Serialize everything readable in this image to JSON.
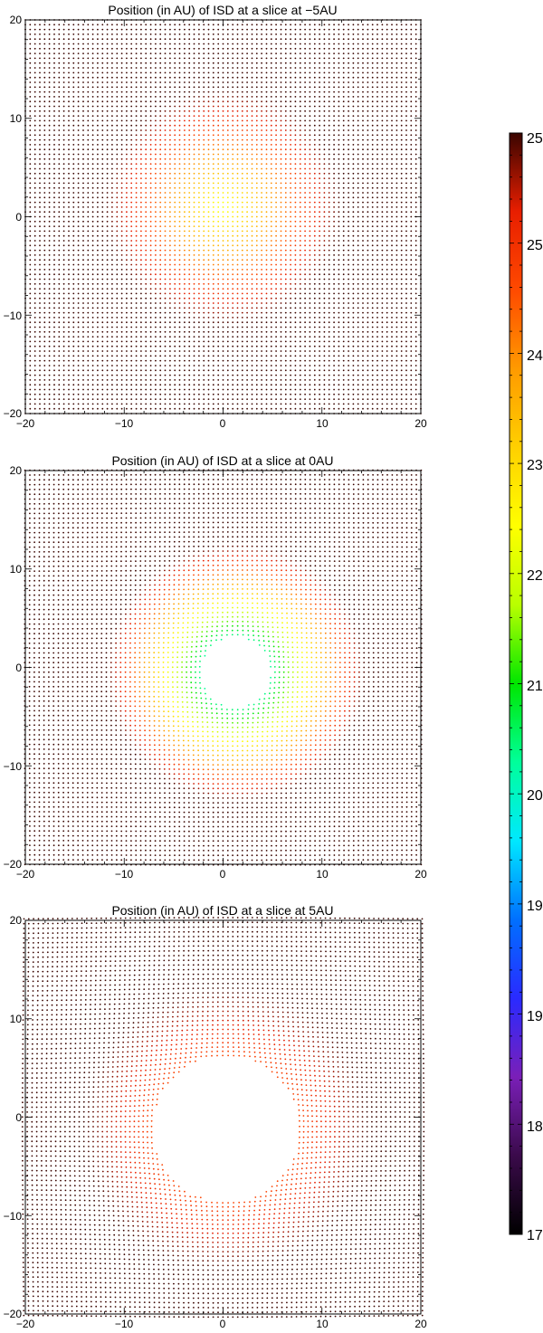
{
  "colors": {
    "outer_dots": "#c8371e",
    "frame": "#000000",
    "background": "#ffffff"
  },
  "chart_data": [
    {
      "type": "scatter",
      "title": "Position (in AU) of ISD at a slice at −5AU",
      "xlabel": "",
      "ylabel": "",
      "xlim": [
        -20,
        20
      ],
      "ylim": [
        -20,
        20
      ],
      "xticks": [
        "−20",
        "−10",
        "0",
        "10",
        "20"
      ],
      "yticks": [
        "20",
        "10",
        "0",
        "−10",
        "−20"
      ],
      "grid": false,
      "color_by": "value",
      "hole": null,
      "field": {
        "center": [
          0,
          1
        ],
        "min_value": 22.0,
        "edge_value": 25.0,
        "radius_scale": 12
      }
    },
    {
      "type": "scatter",
      "title": "Position (in AU) of ISD at a slice at 0AU",
      "xlabel": "",
      "ylabel": "",
      "xlim": [
        -20,
        20
      ],
      "ylim": [
        -20,
        20
      ],
      "xticks": [
        "−20",
        "−10",
        "0",
        "10",
        "20"
      ],
      "yticks": [
        "20",
        "10",
        "0",
        "−10",
        "−20"
      ],
      "grid": false,
      "color_by": "value",
      "hole": {
        "center": [
          1.3,
          -0.5
        ],
        "radius": 3.1
      },
      "field": {
        "center": [
          1.3,
          -0.5
        ],
        "min_value": 19.0,
        "edge_value": 25.0,
        "radius_scale": 13
      }
    },
    {
      "type": "scatter",
      "title": "Position (in AU) of ISD at a slice at 5AU",
      "xlabel": "",
      "ylabel": "",
      "xlim": [
        -20,
        20
      ],
      "ylim": [
        -20,
        20
      ],
      "xticks": [
        "−20",
        "−10",
        "0",
        "10",
        "20"
      ],
      "yticks": [
        "20",
        "10",
        "0",
        "−10",
        "−20"
      ],
      "grid": false,
      "color_by": "value",
      "hole": {
        "center": [
          0.3,
          -1.2
        ],
        "radius": 6.5
      },
      "field": {
        "center": [
          0.3,
          -1.2
        ],
        "min_value": 23.0,
        "edge_value": 25.0,
        "radius_scale": 14
      }
    }
  ],
  "colorbar": {
    "min": 17,
    "max": 25,
    "tick_labels": [
      "25",
      "25",
      "24",
      "23",
      "22",
      "21",
      "20",
      "19",
      "19",
      "18",
      "17"
    ],
    "stops": [
      "#000000",
      "#3a0a4a",
      "#7a1fb8",
      "#2a2aff",
      "#0070ff",
      "#00e8ff",
      "#00ff9a",
      "#00e600",
      "#b8ff00",
      "#ffff00",
      "#ffd000",
      "#ff9a00",
      "#ff4a00",
      "#e81e00",
      "#3a0500"
    ]
  }
}
